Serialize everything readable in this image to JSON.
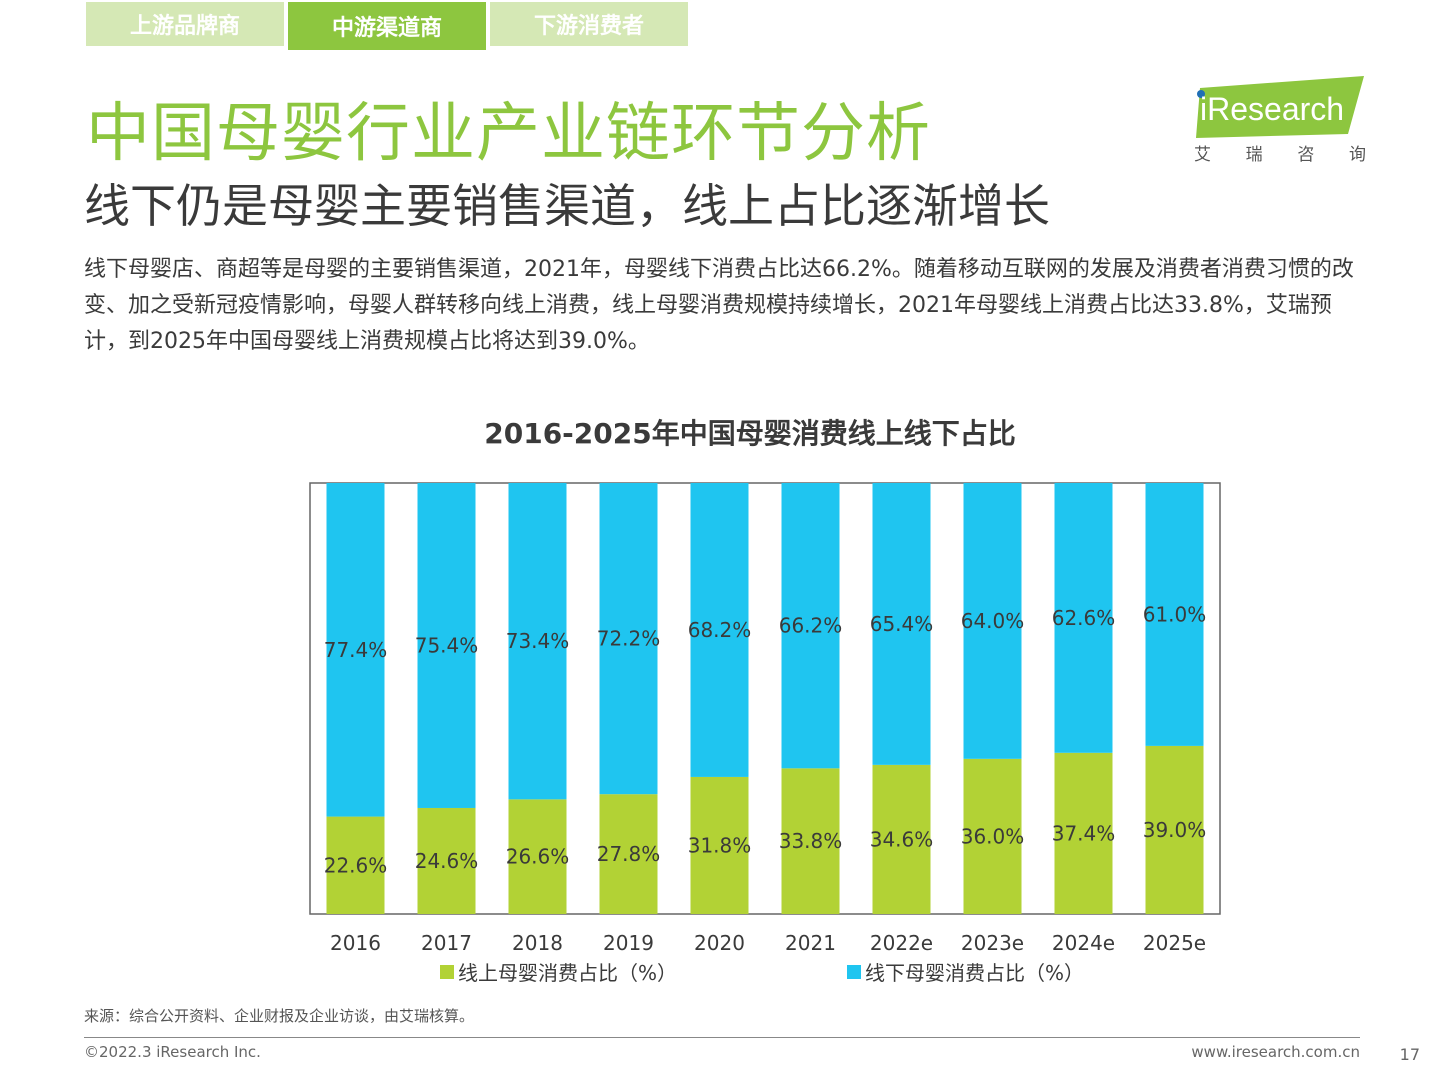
{
  "tabs": [
    {
      "label": "上游品牌商"
    },
    {
      "label": "中游渠道商"
    },
    {
      "label": "下游消费者"
    }
  ],
  "header": {
    "title": "中国母婴行业产业链环节分析",
    "subtitle": "线下仍是母婴主要销售渠道，线上占比逐渐增长",
    "body": "线下母婴店、商超等是母婴的主要销售渠道，2021年，母婴线下消费占比达66.2%。随着移动互联网的发展及消费者消费习惯的改变、加之受新冠疫情影响，母婴人群转移向线上消费，线上母婴消费规模持续增长，2021年母婴线上消费占比达33.8%，艾瑞预计，到2025年中国母婴线上消费规模占比将达到39.0%。"
  },
  "logo": {
    "text": "iResearch",
    "sub": [
      "艾",
      "瑞",
      "咨",
      "询"
    ]
  },
  "colors": {
    "green": "#8dc63f",
    "online": "#b2d235",
    "offline": "#1fc5f0"
  },
  "chart_data": {
    "type": "bar",
    "stacked": true,
    "title": "2016-2025年中国母婴消费线上线下占比",
    "categories": [
      "2016",
      "2017",
      "2018",
      "2019",
      "2020",
      "2021",
      "2022e",
      "2023e",
      "2024e",
      "2025e"
    ],
    "series": [
      {
        "name": "线上母婴消费占比（%）",
        "values": [
          22.6,
          24.6,
          26.6,
          27.8,
          31.8,
          33.8,
          34.6,
          36.0,
          37.4,
          39.0
        ]
      },
      {
        "name": "线下母婴消费占比（%）",
        "values": [
          77.4,
          75.4,
          73.4,
          72.2,
          68.2,
          66.2,
          65.4,
          64.0,
          62.6,
          61.0
        ]
      }
    ],
    "ylim": [
      0,
      100
    ],
    "xlabel": "",
    "ylabel": "",
    "legend": "bottom"
  },
  "footer": {
    "source": "来源：综合公开资料、企业财报及企业访谈，由艾瑞核算。",
    "copyright": "©2022.3 iResearch Inc.",
    "website": "www.iresearch.com.cn",
    "page": "17"
  }
}
